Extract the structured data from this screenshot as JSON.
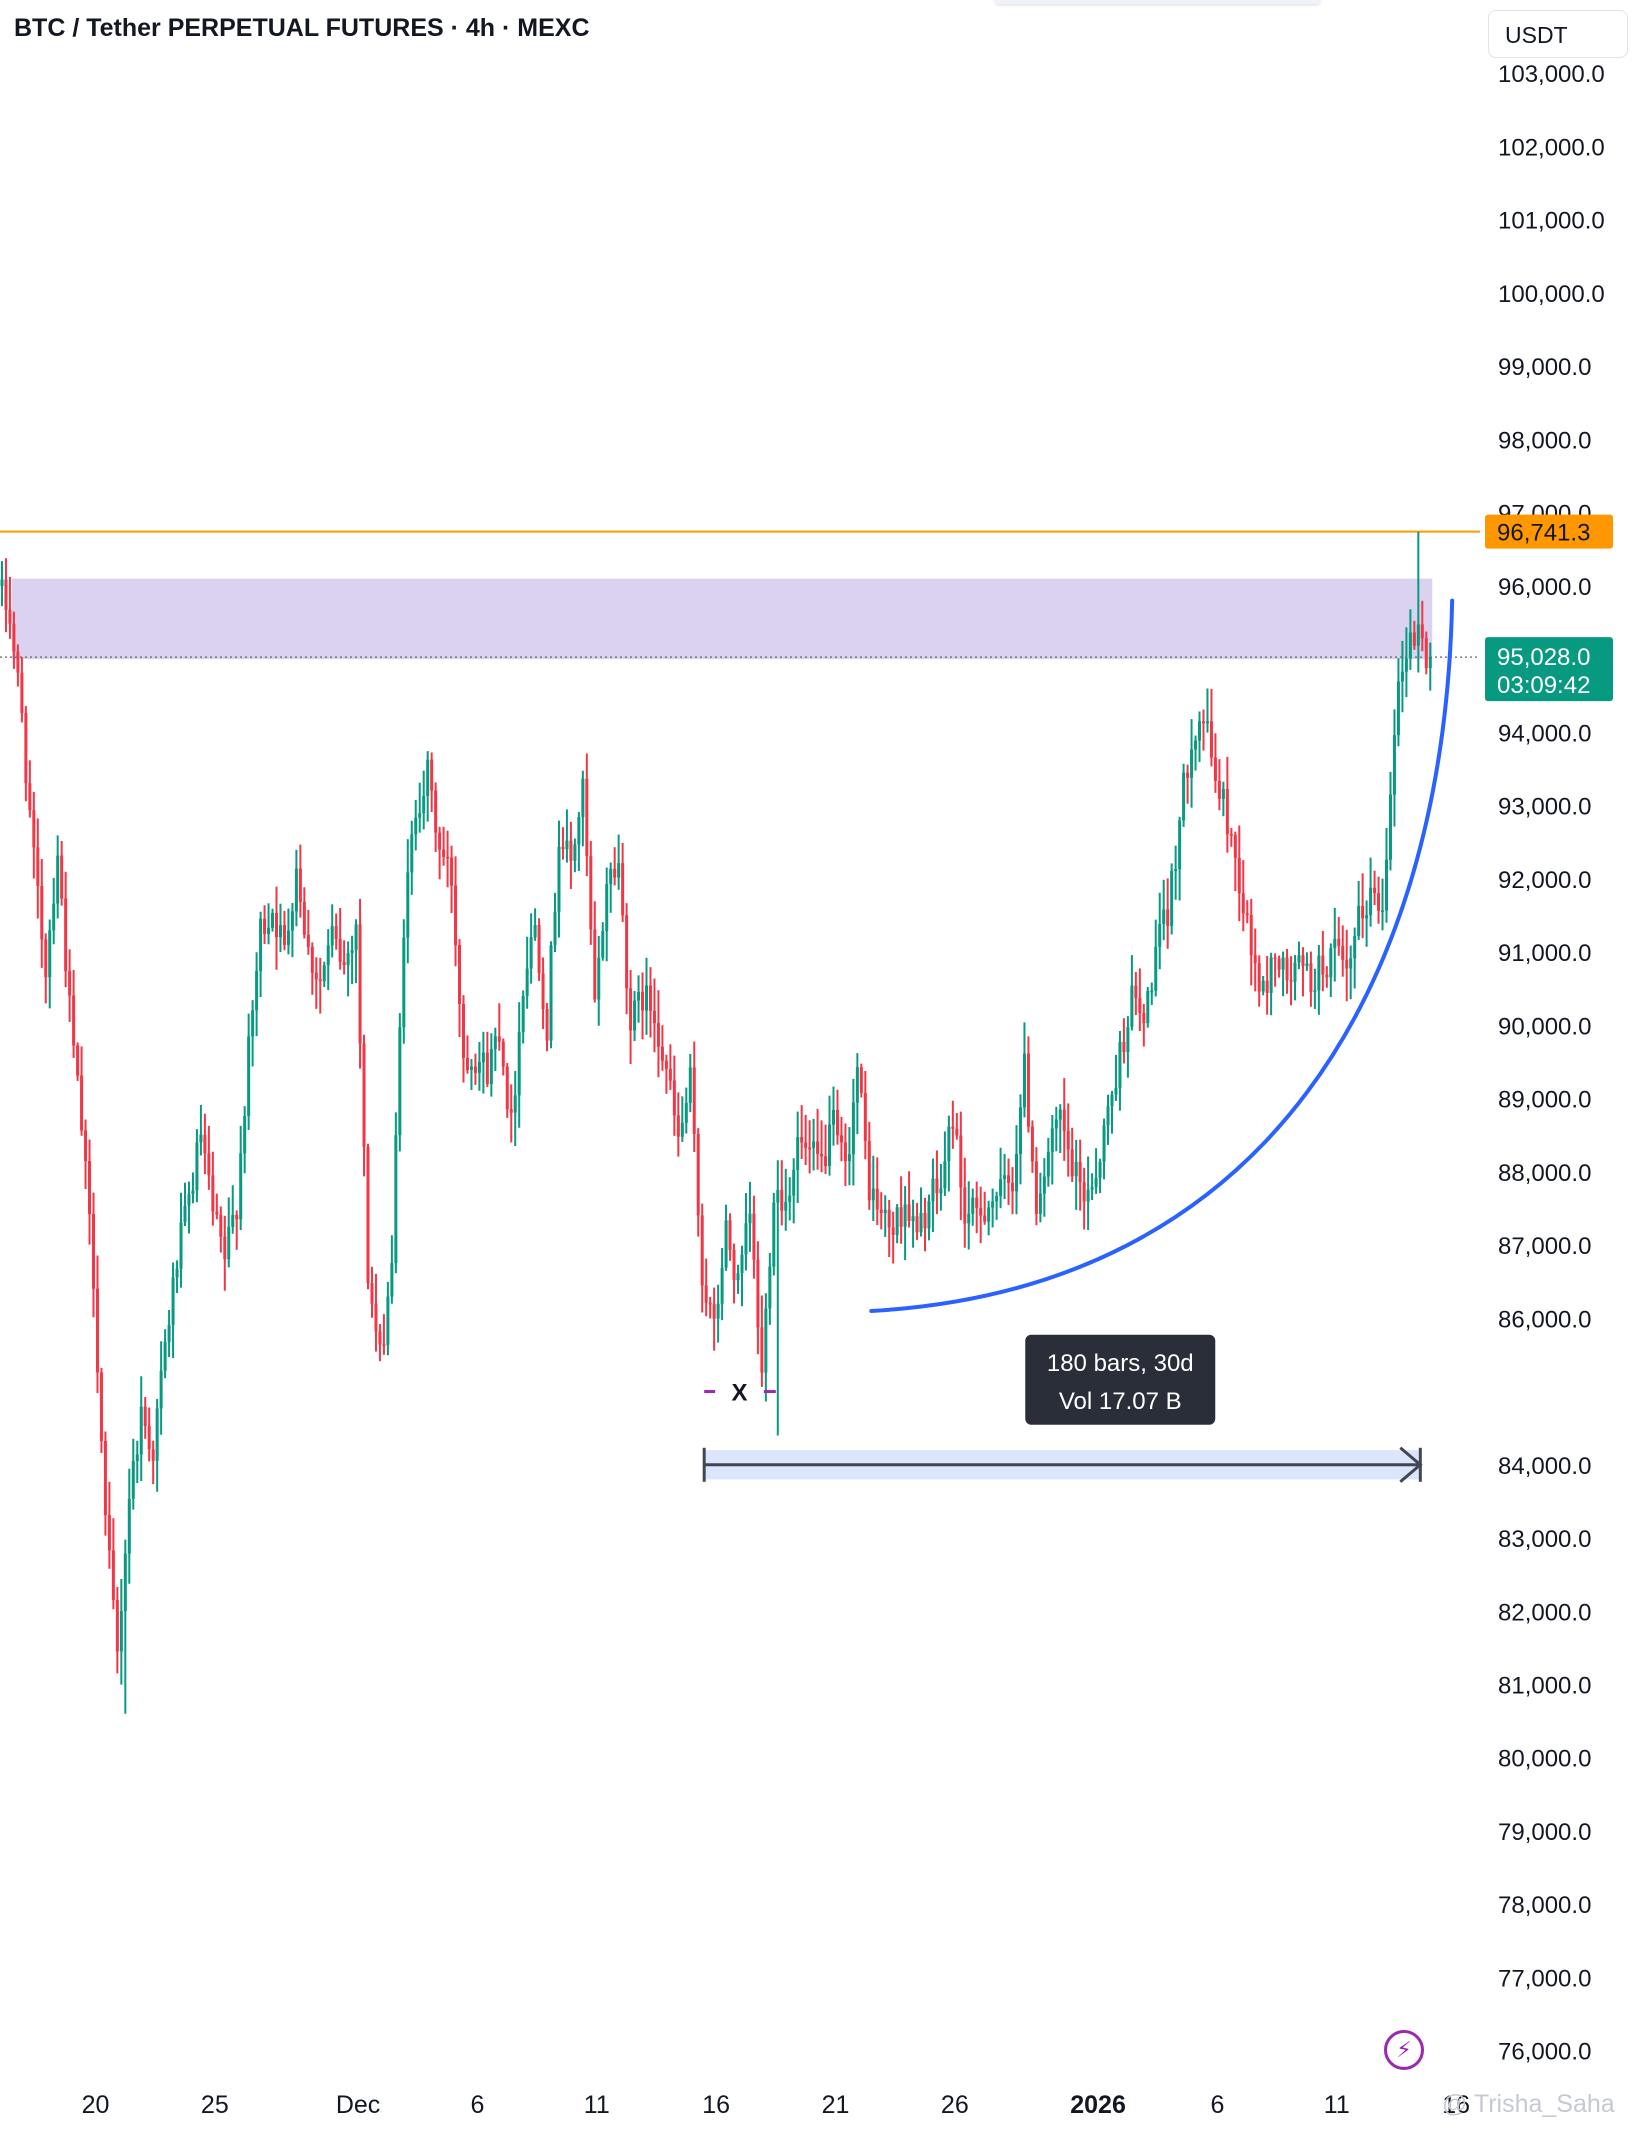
{
  "header": {
    "title": "BTC / Tether PERPETUAL FUTURES · 4h · MEXC",
    "currency": "USDT"
  },
  "watermark": "@ Trisha_Saha",
  "icons": {
    "alert_button": "lightning-icon"
  },
  "chart_data": {
    "type": "candlestick",
    "symbol": "BTC / Tether PERPETUAL FUTURES",
    "interval": "4h",
    "exchange": "MEXC",
    "y_axis": {
      "ticks": [
        76000,
        77000,
        78000,
        79000,
        80000,
        81000,
        82000,
        83000,
        84000,
        85000,
        86000,
        87000,
        88000,
        89000,
        90000,
        91000,
        92000,
        93000,
        94000,
        95000,
        96000,
        97000,
        98000,
        99000,
        100000,
        101000,
        102000,
        103000
      ],
      "tick_labels": [
        "76,000.0",
        "77,000.0",
        "78,000.0",
        "79,000.0",
        "80,000.0",
        "81,000.0",
        "82,000.0",
        "83,000.0",
        "84,000.0",
        "",
        "86,000.0",
        "87,000.0",
        "88,000.0",
        "89,000.0",
        "90,000.0",
        "91,000.0",
        "92,000.0",
        "93,000.0",
        "94,000.0",
        "",
        "96,000.0",
        "97,000.0",
        "98,000.0",
        "99,000.0",
        "100,000.0",
        "101,000.0",
        "102,000.0",
        "103,000.0"
      ],
      "range": [
        75600,
        104000
      ],
      "unit": "USDT"
    },
    "x_axis": {
      "labels": [
        {
          "text": "20",
          "date": "2025-11-20"
        },
        {
          "text": "25",
          "date": "2025-11-25"
        },
        {
          "text": "Dec",
          "date": "2025-12-01"
        },
        {
          "text": "6",
          "date": "2025-12-06"
        },
        {
          "text": "11",
          "date": "2025-12-11"
        },
        {
          "text": "16",
          "date": "2025-12-16"
        },
        {
          "text": "21",
          "date": "2025-12-21"
        },
        {
          "text": "26",
          "date": "2025-12-26"
        },
        {
          "text": "2026",
          "date": "2026-01-01",
          "bold": true
        },
        {
          "text": "6",
          "date": "2026-01-06"
        },
        {
          "text": "11",
          "date": "2026-01-11"
        },
        {
          "text": "16",
          "date": "2026-01-16"
        }
      ],
      "range": [
        "2025-11-16",
        "2026-01-17"
      ]
    },
    "price_path": [
      [
        "2025-11-16T00:00",
        96000
      ],
      [
        "2025-11-16T12:00",
        95600
      ],
      [
        "2025-11-17T00:00",
        94200
      ],
      [
        "2025-11-17T12:00",
        92200
      ],
      [
        "2025-11-18T00:00",
        90800
      ],
      [
        "2025-11-18T12:00",
        92400
      ],
      [
        "2025-11-19T00:00",
        90200
      ],
      [
        "2025-11-19T12:00",
        88600
      ],
      [
        "2025-11-20T00:00",
        86600
      ],
      [
        "2025-11-20T12:00",
        83200
      ],
      [
        "2025-11-21T00:00",
        81400
      ],
      [
        "2025-11-21T12:00",
        83600
      ],
      [
        "2025-11-22T00:00",
        84700
      ],
      [
        "2025-11-22T12:00",
        84200
      ],
      [
        "2025-11-23T00:00",
        85600
      ],
      [
        "2025-11-23T12:00",
        86800
      ],
      [
        "2025-11-24T00:00",
        87600
      ],
      [
        "2025-11-24T12:00",
        88500
      ],
      [
        "2025-11-25T00:00",
        87400
      ],
      [
        "2025-11-25T12:00",
        86800
      ],
      [
        "2025-11-26T00:00",
        87600
      ],
      [
        "2025-11-26T12:00",
        89600
      ],
      [
        "2025-11-27T00:00",
        91300
      ],
      [
        "2025-11-27T12:00",
        91600
      ],
      [
        "2025-11-28T00:00",
        91000
      ],
      [
        "2025-11-28T12:00",
        92200
      ],
      [
        "2025-11-29T00:00",
        91000
      ],
      [
        "2025-11-29T12:00",
        90600
      ],
      [
        "2025-11-30T00:00",
        91200
      ],
      [
        "2025-11-30T12:00",
        90800
      ],
      [
        "2025-12-01T00:00",
        91400
      ],
      [
        "2025-12-01T12:00",
        86600
      ],
      [
        "2025-12-02T00:00",
        85400
      ],
      [
        "2025-12-02T12:00",
        86800
      ],
      [
        "2025-12-03T00:00",
        91400
      ],
      [
        "2025-12-03T12:00",
        93000
      ],
      [
        "2025-12-04T00:00",
        93400
      ],
      [
        "2025-12-04T12:00",
        92400
      ],
      [
        "2025-12-05T00:00",
        92000
      ],
      [
        "2025-12-05T12:00",
        89600
      ],
      [
        "2025-12-06T00:00",
        89600
      ],
      [
        "2025-12-06T12:00",
        89400
      ],
      [
        "2025-12-07T00:00",
        90000
      ],
      [
        "2025-12-07T12:00",
        88600
      ],
      [
        "2025-12-08T00:00",
        90600
      ],
      [
        "2025-12-08T12:00",
        91400
      ],
      [
        "2025-12-09T00:00",
        90000
      ],
      [
        "2025-12-09T12:00",
        92600
      ],
      [
        "2025-12-10T00:00",
        92200
      ],
      [
        "2025-12-10T12:00",
        93200
      ],
      [
        "2025-12-11T00:00",
        90200
      ],
      [
        "2025-12-11T12:00",
        92000
      ],
      [
        "2025-12-12T00:00",
        92200
      ],
      [
        "2025-12-12T12:00",
        90000
      ],
      [
        "2025-12-13T00:00",
        90400
      ],
      [
        "2025-12-13T12:00",
        90200
      ],
      [
        "2025-12-14T00:00",
        89400
      ],
      [
        "2025-12-14T12:00",
        88400
      ],
      [
        "2025-12-15T00:00",
        89200
      ],
      [
        "2025-12-15T12:00",
        86600
      ],
      [
        "2025-12-16T00:00",
        85800
      ],
      [
        "2025-12-16T12:00",
        87200
      ],
      [
        "2025-12-17T00:00",
        86400
      ],
      [
        "2025-12-17T12:00",
        87400
      ],
      [
        "2025-12-18T00:00",
        85200
      ],
      [
        "2025-12-18T12:00",
        87800
      ],
      [
        "2025-12-19T00:00",
        87600
      ],
      [
        "2025-12-19T12:00",
        88400
      ],
      [
        "2025-12-20T00:00",
        88200
      ],
      [
        "2025-12-20T12:00",
        88100
      ],
      [
        "2025-12-21T00:00",
        88600
      ],
      [
        "2025-12-21T12:00",
        88000
      ],
      [
        "2025-12-22T00:00",
        89400
      ],
      [
        "2025-12-22T12:00",
        87800
      ],
      [
        "2025-12-23T00:00",
        87400
      ],
      [
        "2025-12-23T12:00",
        87200
      ],
      [
        "2025-12-24T00:00",
        87600
      ],
      [
        "2025-12-24T12:00",
        87100
      ],
      [
        "2025-12-25T00:00",
        87600
      ],
      [
        "2025-12-25T12:00",
        87800
      ],
      [
        "2025-12-26T00:00",
        88800
      ],
      [
        "2025-12-26T12:00",
        87400
      ],
      [
        "2025-12-27T00:00",
        87400
      ],
      [
        "2025-12-27T12:00",
        87600
      ],
      [
        "2025-12-28T00:00",
        87700
      ],
      [
        "2025-12-28T12:00",
        87900
      ],
      [
        "2025-12-29T00:00",
        89400
      ],
      [
        "2025-12-29T12:00",
        87600
      ],
      [
        "2025-12-30T00:00",
        88200
      ],
      [
        "2025-12-30T12:00",
        88700
      ],
      [
        "2025-12-31T00:00",
        88000
      ],
      [
        "2025-12-31T12:00",
        87700
      ],
      [
        "2026-01-01T00:00",
        88000
      ],
      [
        "2026-01-01T12:00",
        88800
      ],
      [
        "2026-01-02T00:00",
        89600
      ],
      [
        "2026-01-02T12:00",
        90400
      ],
      [
        "2026-01-03T00:00",
        90000
      ],
      [
        "2026-01-03T12:00",
        91000
      ],
      [
        "2026-01-04T00:00",
        91500
      ],
      [
        "2026-01-04T12:00",
        92800
      ],
      [
        "2026-01-05T00:00",
        94000
      ],
      [
        "2026-01-05T12:00",
        94200
      ],
      [
        "2026-01-06T00:00",
        93400
      ],
      [
        "2026-01-06T12:00",
        92800
      ],
      [
        "2026-01-07T00:00",
        92000
      ],
      [
        "2026-01-07T12:00",
        91000
      ],
      [
        "2026-01-08T00:00",
        90400
      ],
      [
        "2026-01-08T12:00",
        91000
      ],
      [
        "2026-01-09T00:00",
        90600
      ],
      [
        "2026-01-09T12:00",
        90800
      ],
      [
        "2026-01-10T00:00",
        90600
      ],
      [
        "2026-01-10T12:00",
        90800
      ],
      [
        "2026-01-11T00:00",
        91000
      ],
      [
        "2026-01-11T12:00",
        90600
      ],
      [
        "2026-01-12T00:00",
        91400
      ],
      [
        "2026-01-12T12:00",
        91800
      ],
      [
        "2026-01-13T00:00",
        91600
      ],
      [
        "2026-01-13T12:00",
        94200
      ],
      [
        "2026-01-14T00:00",
        95200
      ],
      [
        "2026-01-14T12:00",
        95400
      ],
      [
        "2026-01-14T20:00",
        95028
      ]
    ],
    "notable_extremes": {
      "high": {
        "time": "2026-01-14T08:00",
        "price": 96741.3
      },
      "low_november": {
        "time": "2025-11-21T04:00",
        "price": 80600
      },
      "low_december": {
        "time": "2025-12-18T12:00",
        "price": 84400
      }
    },
    "horizontal_line": {
      "price": 96741.3,
      "label": "96,741.3",
      "color": "#ff9800"
    },
    "last_price": {
      "price": 95028.0,
      "label": "95,028.0",
      "countdown": "03:09:42",
      "color": "#089981"
    },
    "zone": {
      "from_price": 95000,
      "to_price": 96100,
      "start": "2025-11-16T12:00",
      "end": "2026-01-15T00:00",
      "color": "#d6cdec"
    },
    "curve_annotation": {
      "points": [
        [
          "2025-12-22T12:00",
          86100
        ],
        [
          "2026-01-08T00:00",
          86400
        ],
        [
          "2026-01-15T12:00",
          90500
        ],
        [
          "2026-01-15T20:00",
          95800
        ]
      ],
      "color": "#2962ff"
    },
    "double_bottom_marker": {
      "label": "X",
      "left": {
        "start": "2025-12-15T12:00",
        "end": "2025-12-15T23:00",
        "price": 85000
      },
      "right": {
        "start": "2025-12-18T00:00",
        "end": "2025-12-18T12:00",
        "price": 85000
      },
      "color": "#9c27b0"
    },
    "date_range_measure": {
      "start": "2025-12-15T12:00",
      "end": "2026-01-14T12:00",
      "price": 84000,
      "band_top": 84200,
      "band_bottom": 83800,
      "label_line1": "180 bars, 30d",
      "label_line2": "Vol 17.07 B"
    },
    "colors": {
      "up": "#089981",
      "down": "#f23645",
      "grid": "#ffffff",
      "axis_text": "#131722"
    }
  }
}
